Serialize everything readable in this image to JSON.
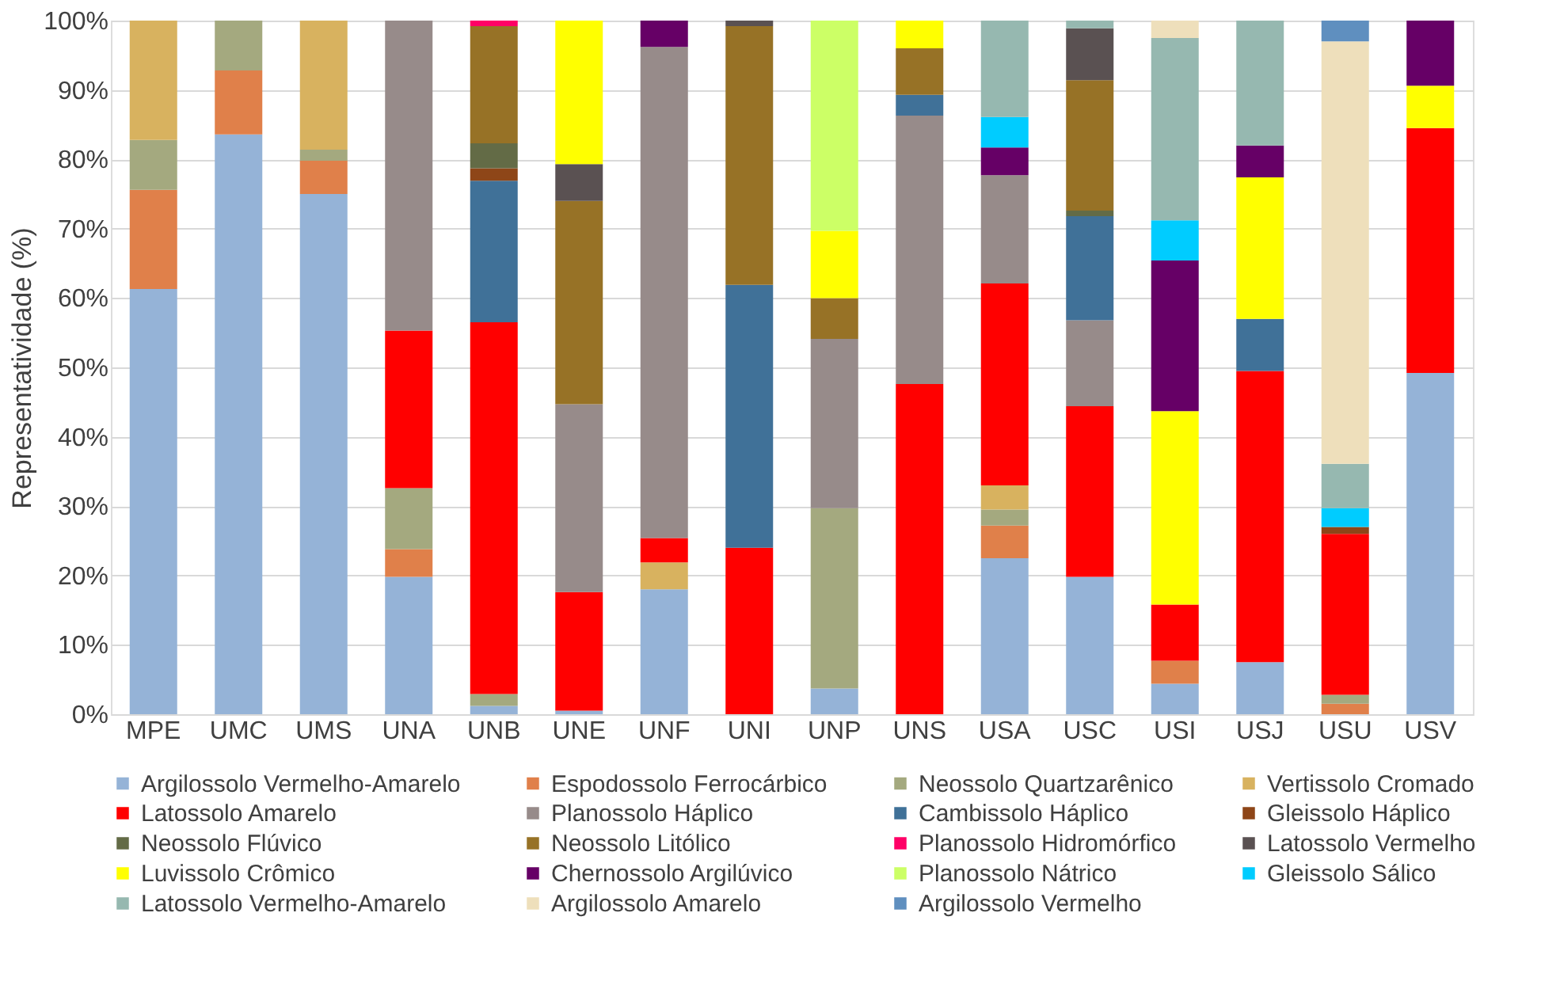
{
  "chart_data": {
    "type": "bar",
    "stacked": true,
    "ylabel": "Representatividade (%)",
    "categories": [
      "MPE",
      "UMC",
      "UMS",
      "UNA",
      "UNB",
      "UNE",
      "UNF",
      "UNI",
      "UNP",
      "UNS",
      "USA",
      "USC",
      "USI",
      "USJ",
      "USU",
      "USV"
    ],
    "ylim": [
      0,
      100
    ],
    "yticks": [
      {
        "value": 0,
        "label": "0%"
      },
      {
        "value": 10,
        "label": "10%"
      },
      {
        "value": 20,
        "label": "20%"
      },
      {
        "value": 30,
        "label": "30%"
      },
      {
        "value": 40,
        "label": "40%"
      },
      {
        "value": 50,
        "label": "50%"
      },
      {
        "value": 60,
        "label": "60%"
      },
      {
        "value": 70,
        "label": "70%"
      },
      {
        "value": 80,
        "label": "80%"
      },
      {
        "value": 90,
        "label": "90%"
      },
      {
        "value": 100,
        "label": "100%"
      }
    ],
    "grid": "y",
    "legend": "bottom",
    "series": [
      {
        "name": "Argilossolo Vermelho-Amarelo",
        "color": "#95b3d7",
        "values": [
          61.3,
          83.6,
          75.0,
          19.8,
          1.2,
          0.5,
          18.0,
          null,
          3.7,
          null,
          22.5,
          19.8,
          4.4,
          7.5,
          null,
          49.2
        ]
      },
      {
        "name": "Espodossolo Ferrocárbico",
        "color": "#e0804a",
        "values": [
          14.3,
          9.2,
          4.8,
          4.0,
          null,
          null,
          null,
          null,
          null,
          null,
          4.7,
          null,
          3.3,
          null,
          1.5,
          null
        ]
      },
      {
        "name": "Neossolo Quartzarênico",
        "color": "#a4a97f",
        "values": [
          7.2,
          7.2,
          1.6,
          8.8,
          1.7,
          null,
          null,
          null,
          26.0,
          null,
          2.3,
          null,
          null,
          null,
          1.3,
          null
        ]
      },
      {
        "name": "Vertissolo Cromado",
        "color": "#d8b25f",
        "values": [
          17.2,
          null,
          18.6,
          null,
          null,
          null,
          3.9,
          null,
          null,
          null,
          3.5,
          null,
          null,
          null,
          null,
          null
        ]
      },
      {
        "name": "Latossolo Amarelo",
        "color": "#ff0000",
        "values": [
          null,
          null,
          null,
          22.7,
          53.6,
          17.1,
          3.5,
          24.0,
          null,
          47.6,
          29.1,
          24.6,
          8.1,
          42.0,
          23.2,
          35.3
        ]
      },
      {
        "name": "Planossolo Háplico",
        "color": "#978b8a",
        "values": [
          null,
          null,
          null,
          44.7,
          null,
          27.1,
          70.8,
          null,
          24.4,
          38.7,
          15.6,
          12.4,
          null,
          null,
          null,
          null
        ]
      },
      {
        "name": "Cambissolo Háplico",
        "color": "#407198",
        "values": [
          null,
          null,
          null,
          null,
          20.4,
          null,
          null,
          37.9,
          null,
          3.0,
          null,
          15.0,
          null,
          7.5,
          null,
          null
        ]
      },
      {
        "name": "Gleissolo Háplico",
        "color": "#8e4618",
        "values": [
          null,
          null,
          null,
          null,
          1.8,
          null,
          null,
          null,
          null,
          null,
          null,
          null,
          null,
          null,
          1.0,
          null
        ]
      },
      {
        "name": "Neossolo Flúvico",
        "color": "#636b46",
        "values": [
          null,
          null,
          null,
          null,
          3.6,
          null,
          null,
          null,
          null,
          null,
          null,
          0.8,
          null,
          null,
          null,
          null
        ]
      },
      {
        "name": "Neossolo Litólico",
        "color": "#977226",
        "values": [
          null,
          null,
          null,
          null,
          16.9,
          29.3,
          null,
          37.3,
          5.9,
          6.7,
          null,
          18.8,
          null,
          null,
          null,
          null
        ]
      },
      {
        "name": "Planossolo Hidromórfico",
        "color": "#ff0066",
        "values": [
          null,
          null,
          null,
          null,
          0.8,
          null,
          null,
          null,
          null,
          null,
          null,
          null,
          null,
          null,
          null,
          null
        ]
      },
      {
        "name": "Latossolo Vermelho",
        "color": "#5a5152",
        "values": [
          null,
          null,
          null,
          null,
          null,
          5.3,
          null,
          0.8,
          null,
          null,
          null,
          7.5,
          null,
          null,
          null,
          null
        ]
      },
      {
        "name": "Luvissolo Crômico",
        "color": "#ffff00",
        "values": [
          null,
          null,
          null,
          null,
          null,
          20.7,
          null,
          null,
          9.7,
          4.0,
          null,
          null,
          27.9,
          20.4,
          null,
          6.1
        ]
      },
      {
        "name": "Chernossolo Argilúvico",
        "color": "#660066",
        "values": [
          null,
          null,
          null,
          null,
          null,
          null,
          3.8,
          null,
          null,
          null,
          4.0,
          null,
          21.7,
          4.6,
          null,
          9.4
        ]
      },
      {
        "name": "Planossolo Nátrico",
        "color": "#ccff66",
        "values": [
          null,
          null,
          null,
          null,
          null,
          null,
          null,
          null,
          30.3,
          null,
          null,
          null,
          null,
          null,
          null,
          null
        ]
      },
      {
        "name": "Gleissolo Sálico",
        "color": "#00ccff",
        "values": [
          null,
          null,
          null,
          null,
          null,
          null,
          null,
          null,
          null,
          null,
          4.4,
          null,
          5.8,
          null,
          2.7,
          null
        ]
      },
      {
        "name": "Latossolo Vermelho-Amarelo",
        "color": "#96b8b0",
        "values": [
          null,
          null,
          null,
          null,
          null,
          null,
          null,
          null,
          null,
          null,
          13.9,
          1.1,
          26.3,
          18.0,
          6.4,
          null
        ]
      },
      {
        "name": "Argilossolo Amarelo",
        "color": "#eedfbb",
        "values": [
          null,
          null,
          null,
          null,
          null,
          null,
          null,
          null,
          null,
          null,
          null,
          null,
          2.5,
          null,
          60.9,
          null
        ]
      },
      {
        "name": "Argilossolo Vermelho",
        "color": "#5f8fbf",
        "values": [
          null,
          null,
          null,
          null,
          null,
          null,
          null,
          null,
          null,
          null,
          null,
          null,
          null,
          null,
          3.0,
          null
        ]
      }
    ]
  }
}
